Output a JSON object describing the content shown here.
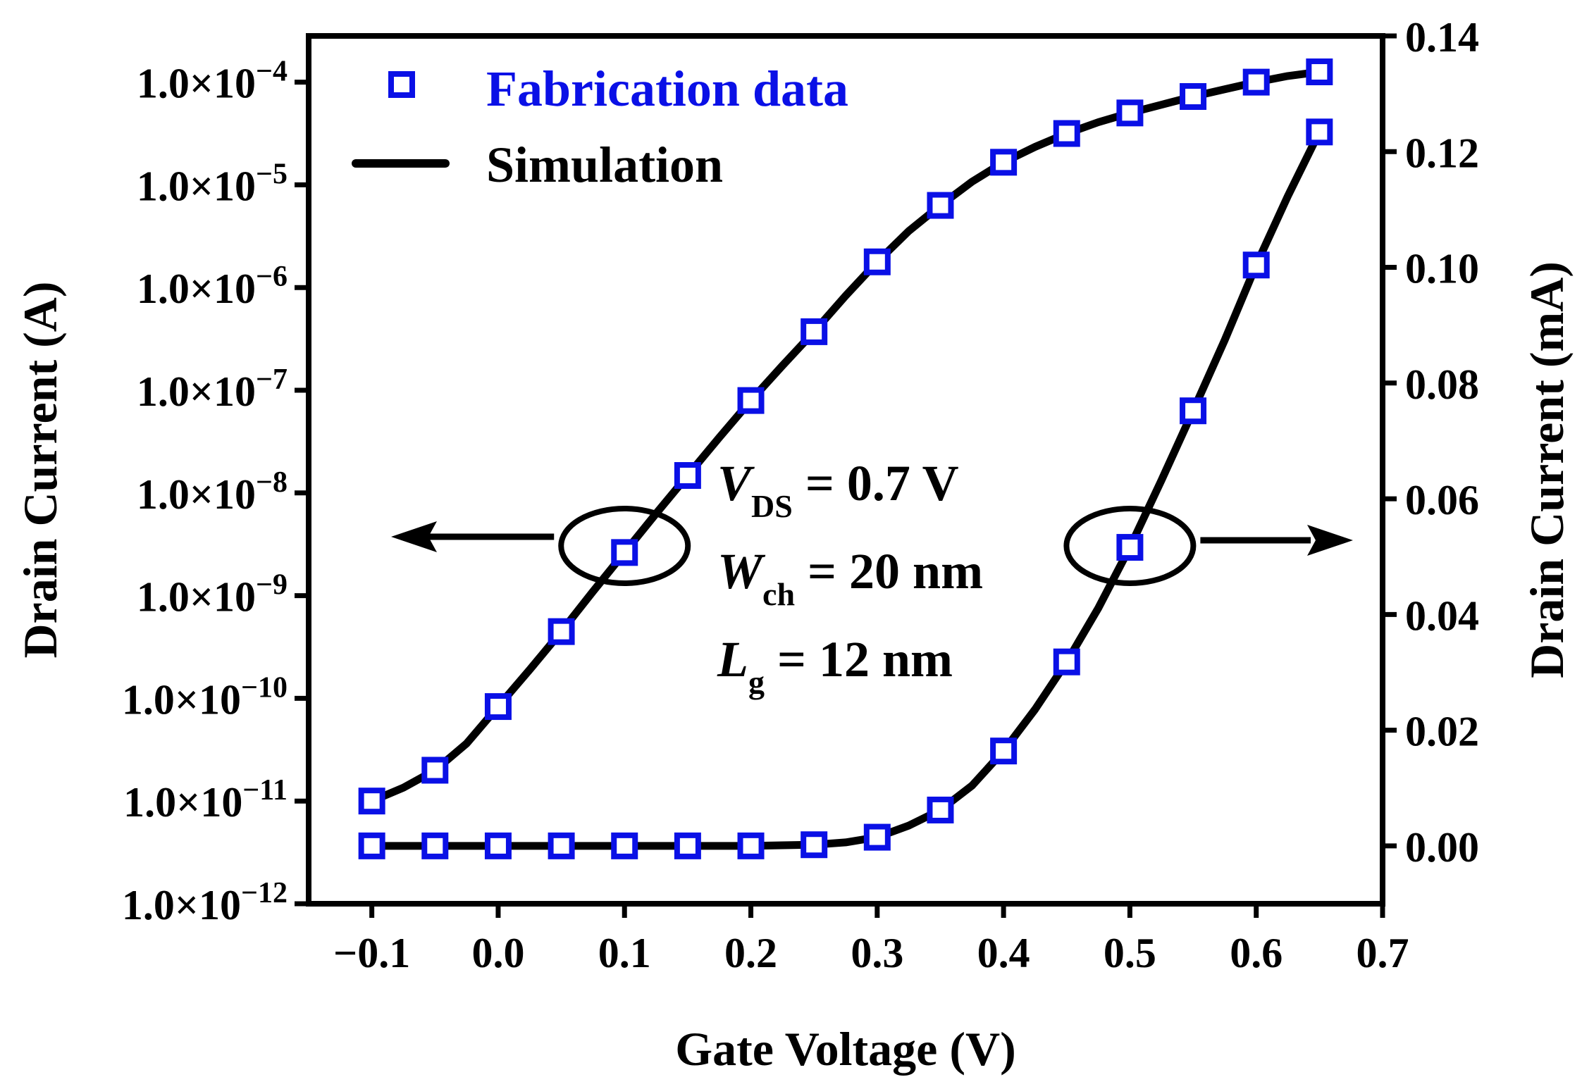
{
  "chart_data": {
    "type": "line",
    "xlabel": "Gate Voltage (V)",
    "ylabel_left": "Drain Current (A)",
    "ylabel_right": "Drain Current (mA)",
    "xlim": [
      -0.15,
      0.7
    ],
    "x_ticks": [
      -0.1,
      0.0,
      0.1,
      0.2,
      0.3,
      0.4,
      0.5,
      0.6,
      0.7
    ],
    "x_tick_labels": [
      "−0.1",
      "0.0",
      "0.1",
      "0.2",
      "0.3",
      "0.4",
      "0.5",
      "0.6",
      "0.7"
    ],
    "left_axis": {
      "scale": "log",
      "ylim_exp": [
        -12,
        -3.55
      ],
      "tick_exponents": [
        -12,
        -11,
        -10,
        -9,
        -8,
        -7,
        -6,
        -5,
        -4
      ],
      "tick_mantissa": "1.0×10",
      "tick_exponent_labels": [
        "−12",
        "−11",
        "−10",
        "−9",
        "−8",
        "−7",
        "−6",
        "−5",
        "−4"
      ]
    },
    "right_axis": {
      "scale": "linear",
      "ylim": [
        -0.01,
        0.14
      ],
      "ticks": [
        0.0,
        0.02,
        0.04,
        0.06,
        0.08,
        0.1,
        0.12,
        0.14
      ],
      "tick_labels": [
        "0.00",
        "0.02",
        "0.04",
        "0.06",
        "0.08",
        "0.10",
        "0.12",
        "0.14"
      ]
    },
    "x": [
      -0.1,
      -0.05,
      0.0,
      0.05,
      0.1,
      0.15,
      0.2,
      0.25,
      0.3,
      0.35,
      0.4,
      0.45,
      0.5,
      0.55,
      0.6,
      0.65
    ],
    "series": [
      {
        "name": "Fabrication data (log)",
        "axis": "left",
        "marker": "open-square",
        "color": "#0a10e6",
        "log10_values": [
          -11.0,
          -10.7,
          -10.08,
          -9.35,
          -8.58,
          -7.83,
          -7.1,
          -6.43,
          -5.75,
          -5.2,
          -4.78,
          -4.5,
          -4.3,
          -4.14,
          -4.0,
          -3.9
        ]
      },
      {
        "name": "Fabrication data (linear)",
        "axis": "right",
        "marker": "open-square",
        "color": "#0a10e6",
        "values_mA": [
          0.0,
          0.0,
          0.0,
          0.0,
          0.0,
          0.0,
          0.0,
          0.0002,
          0.0015,
          0.0062,
          0.0164,
          0.0318,
          0.0516,
          0.0752,
          0.1004,
          0.1234
        ]
      },
      {
        "name": "Simulation (log)",
        "axis": "left",
        "style": "solid-line",
        "color": "#000000",
        "x": [
          -0.1,
          -0.075,
          -0.05,
          -0.025,
          0.0,
          0.025,
          0.05,
          0.075,
          0.1,
          0.125,
          0.15,
          0.175,
          0.2,
          0.225,
          0.25,
          0.275,
          0.3,
          0.325,
          0.35,
          0.375,
          0.4,
          0.425,
          0.45,
          0.475,
          0.5,
          0.525,
          0.55,
          0.575,
          0.6,
          0.625,
          0.65
        ],
        "log10_values": [
          -11.0,
          -10.87,
          -10.7,
          -10.44,
          -10.08,
          -9.72,
          -9.35,
          -8.96,
          -8.58,
          -8.2,
          -7.83,
          -7.46,
          -7.1,
          -6.76,
          -6.43,
          -6.08,
          -5.75,
          -5.45,
          -5.2,
          -4.97,
          -4.78,
          -4.63,
          -4.5,
          -4.39,
          -4.3,
          -4.22,
          -4.14,
          -4.07,
          -4.0,
          -3.94,
          -3.9
        ]
      },
      {
        "name": "Simulation (linear)",
        "axis": "right",
        "style": "solid-line",
        "color": "#000000",
        "x": [
          -0.1,
          -0.05,
          0.0,
          0.05,
          0.1,
          0.15,
          0.2,
          0.225,
          0.25,
          0.275,
          0.3,
          0.325,
          0.35,
          0.375,
          0.4,
          0.425,
          0.45,
          0.475,
          0.5,
          0.525,
          0.55,
          0.575,
          0.6,
          0.625,
          0.65
        ],
        "values_mA": [
          0.0,
          0.0,
          0.0,
          0.0,
          0.0,
          0.0,
          0.0,
          0.0001,
          0.0002,
          0.0006,
          0.0015,
          0.0035,
          0.0062,
          0.0104,
          0.0164,
          0.0236,
          0.0318,
          0.0411,
          0.0516,
          0.0632,
          0.0752,
          0.0874,
          0.1004,
          0.1123,
          0.1234
        ]
      }
    ],
    "legend": {
      "position": "top-left",
      "entries": [
        {
          "label": "Fabrication data",
          "marker": "open-square",
          "color": "#0a10e6"
        },
        {
          "label": "Simulation",
          "style": "solid-line",
          "color": "#000000"
        }
      ]
    },
    "annotations": {
      "params": [
        {
          "symbol": "V",
          "subscript": "DS",
          "rest": " = 0.7 V"
        },
        {
          "symbol": "W",
          "subscript": "ch",
          "rest": " = 20 nm"
        },
        {
          "symbol": "L",
          "subscript": "g",
          "rest": " = 12 nm"
        }
      ],
      "left_circle_x": 0.1,
      "right_circle_x": 0.5,
      "left_arrow": "points to left axis",
      "right_arrow": "points to right axis"
    }
  }
}
